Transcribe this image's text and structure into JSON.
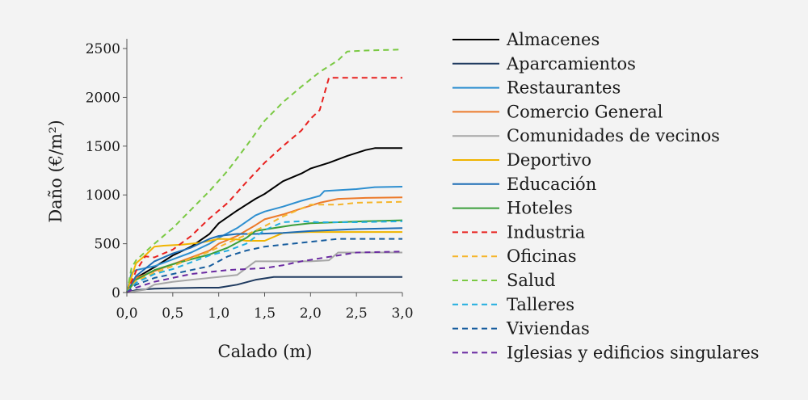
{
  "chart_data": {
    "type": "line",
    "xlabel": "Calado (m)",
    "ylabel": "Daño (€/m²)",
    "xlim": [
      0,
      3
    ],
    "ylim": [
      0,
      2600
    ],
    "xticks": [
      "0,0",
      "0,5",
      "1,0",
      "1,5",
      "2,0",
      "2,5",
      "3,0"
    ],
    "xtick_values": [
      0,
      0.5,
      1,
      1.5,
      2,
      2.5,
      3
    ],
    "yticks": [
      "0",
      "500",
      "1000",
      "1500",
      "2000",
      "2500"
    ],
    "ytick_values": [
      0,
      500,
      1000,
      1500,
      2000,
      2500
    ],
    "grid": false,
    "legend_position": "right",
    "series": [
      {
        "name": "Almacenes",
        "color": "#000000",
        "dash": false,
        "points": [
          [
            0,
            0
          ],
          [
            0.1,
            150
          ],
          [
            0.3,
            260
          ],
          [
            0.5,
            380
          ],
          [
            0.7,
            470
          ],
          [
            0.9,
            600
          ],
          [
            1.0,
            710
          ],
          [
            1.2,
            840
          ],
          [
            1.4,
            960
          ],
          [
            1.5,
            1010
          ],
          [
            1.7,
            1140
          ],
          [
            1.9,
            1220
          ],
          [
            2.0,
            1270
          ],
          [
            2.2,
            1330
          ],
          [
            2.4,
            1400
          ],
          [
            2.6,
            1460
          ],
          [
            2.7,
            1480
          ],
          [
            3.0,
            1480
          ]
        ]
      },
      {
        "name": "Aparcamientos",
        "color": "#1f3a5f",
        "dash": false,
        "points": [
          [
            0,
            0
          ],
          [
            0.1,
            25
          ],
          [
            0.3,
            40
          ],
          [
            0.5,
            45
          ],
          [
            0.8,
            50
          ],
          [
            1.0,
            50
          ],
          [
            1.2,
            80
          ],
          [
            1.4,
            130
          ],
          [
            1.6,
            160
          ],
          [
            2.0,
            160
          ],
          [
            3.0,
            160
          ]
        ]
      },
      {
        "name": "Restaurantes",
        "color": "#2e8fd0",
        "dash": false,
        "points": [
          [
            0,
            0
          ],
          [
            0.05,
            200
          ],
          [
            0.1,
            230
          ],
          [
            0.3,
            270
          ],
          [
            0.5,
            340
          ],
          [
            0.7,
            410
          ],
          [
            0.9,
            500
          ],
          [
            1.0,
            560
          ],
          [
            1.2,
            660
          ],
          [
            1.4,
            790
          ],
          [
            1.5,
            830
          ],
          [
            1.7,
            880
          ],
          [
            1.9,
            940
          ],
          [
            2.1,
            990
          ],
          [
            2.15,
            1040
          ],
          [
            2.5,
            1060
          ],
          [
            2.7,
            1080
          ],
          [
            3.0,
            1085
          ]
        ]
      },
      {
        "name": "Comercio General",
        "color": "#ec7a2a",
        "dash": false,
        "points": [
          [
            0,
            0
          ],
          [
            0.1,
            150
          ],
          [
            0.3,
            220
          ],
          [
            0.5,
            290
          ],
          [
            0.7,
            360
          ],
          [
            0.9,
            430
          ],
          [
            1.0,
            500
          ],
          [
            1.2,
            580
          ],
          [
            1.4,
            690
          ],
          [
            1.5,
            750
          ],
          [
            1.7,
            800
          ],
          [
            1.9,
            860
          ],
          [
            2.1,
            920
          ],
          [
            2.3,
            960
          ],
          [
            2.6,
            970
          ],
          [
            3.0,
            975
          ]
        ]
      },
      {
        "name": "Comunidades de vecinos",
        "color": "#a6a6a6",
        "dash": false,
        "points": [
          [
            0,
            0
          ],
          [
            0.2,
            30
          ],
          [
            0.3,
            80
          ],
          [
            0.5,
            110
          ],
          [
            0.7,
            130
          ],
          [
            0.9,
            150
          ],
          [
            1.0,
            160
          ],
          [
            1.2,
            180
          ],
          [
            1.3,
            250
          ],
          [
            1.4,
            320
          ],
          [
            1.6,
            320
          ],
          [
            1.8,
            320
          ],
          [
            2.0,
            320
          ],
          [
            2.2,
            330
          ],
          [
            2.3,
            410
          ],
          [
            3.0,
            410
          ]
        ]
      },
      {
        "name": "Deportivo",
        "color": "#f0b400",
        "dash": false,
        "points": [
          [
            0,
            0
          ],
          [
            0.05,
            160
          ],
          [
            0.1,
            300
          ],
          [
            0.2,
            380
          ],
          [
            0.3,
            470
          ],
          [
            0.4,
            480
          ],
          [
            0.6,
            490
          ],
          [
            0.8,
            510
          ],
          [
            1.0,
            550
          ],
          [
            1.2,
            545
          ],
          [
            1.3,
            530
          ],
          [
            1.5,
            530
          ],
          [
            1.7,
            610
          ],
          [
            2.0,
            620
          ],
          [
            3.0,
            620
          ]
        ]
      },
      {
        "name": "Educación",
        "color": "#1d6db5",
        "dash": false,
        "points": [
          [
            0,
            0
          ],
          [
            0.1,
            170
          ],
          [
            0.3,
            320
          ],
          [
            0.5,
            400
          ],
          [
            0.7,
            460
          ],
          [
            0.9,
            550
          ],
          [
            1.0,
            580
          ],
          [
            1.2,
            600
          ],
          [
            1.4,
            600
          ],
          [
            1.7,
            610
          ],
          [
            2.0,
            630
          ],
          [
            2.5,
            650
          ],
          [
            3.0,
            660
          ]
        ]
      },
      {
        "name": "Hoteles",
        "color": "#3a9e3a",
        "dash": false,
        "points": [
          [
            0,
            0
          ],
          [
            0.1,
            130
          ],
          [
            0.3,
            230
          ],
          [
            0.5,
            290
          ],
          [
            0.7,
            340
          ],
          [
            0.9,
            390
          ],
          [
            1.1,
            460
          ],
          [
            1.3,
            560
          ],
          [
            1.4,
            630
          ],
          [
            1.6,
            660
          ],
          [
            1.8,
            690
          ],
          [
            2.0,
            710
          ],
          [
            2.3,
            720
          ],
          [
            2.6,
            730
          ],
          [
            3.0,
            740
          ]
        ]
      },
      {
        "name": "Industria",
        "color": "#e8211f",
        "dash": true,
        "points": [
          [
            0,
            0
          ],
          [
            0.1,
            220
          ],
          [
            0.2,
            370
          ],
          [
            0.3,
            360
          ],
          [
            0.5,
            440
          ],
          [
            0.7,
            580
          ],
          [
            0.9,
            760
          ],
          [
            1.1,
            920
          ],
          [
            1.3,
            1130
          ],
          [
            1.5,
            1330
          ],
          [
            1.7,
            1500
          ],
          [
            1.9,
            1660
          ],
          [
            2.0,
            1780
          ],
          [
            2.1,
            1870
          ],
          [
            2.2,
            2200
          ],
          [
            3.0,
            2200
          ]
        ]
      },
      {
        "name": "Oficinas",
        "color": "#f5b52b",
        "dash": true,
        "points": [
          [
            0,
            0
          ],
          [
            0.1,
            120
          ],
          [
            0.3,
            200
          ],
          [
            0.5,
            270
          ],
          [
            0.7,
            350
          ],
          [
            0.9,
            420
          ],
          [
            1.1,
            510
          ],
          [
            1.3,
            590
          ],
          [
            1.5,
            680
          ],
          [
            1.7,
            780
          ],
          [
            1.9,
            860
          ],
          [
            2.0,
            900
          ],
          [
            2.3,
            900
          ],
          [
            2.5,
            920
          ],
          [
            3.0,
            930
          ]
        ]
      },
      {
        "name": "Salud",
        "color": "#7ac943",
        "dash": true,
        "points": [
          [
            0,
            0
          ],
          [
            0.05,
            250
          ],
          [
            0.1,
            330
          ],
          [
            0.3,
            500
          ],
          [
            0.5,
            660
          ],
          [
            0.7,
            850
          ],
          [
            0.9,
            1040
          ],
          [
            1.1,
            1250
          ],
          [
            1.3,
            1500
          ],
          [
            1.5,
            1760
          ],
          [
            1.7,
            1950
          ],
          [
            1.9,
            2110
          ],
          [
            2.1,
            2260
          ],
          [
            2.3,
            2380
          ],
          [
            2.4,
            2470
          ],
          [
            2.6,
            2480
          ],
          [
            3.0,
            2490
          ]
        ]
      },
      {
        "name": "Talleres",
        "color": "#22aee0",
        "dash": true,
        "points": [
          [
            0,
            0
          ],
          [
            0.1,
            100
          ],
          [
            0.3,
            190
          ],
          [
            0.5,
            240
          ],
          [
            0.7,
            310
          ],
          [
            0.9,
            380
          ],
          [
            1.1,
            430
          ],
          [
            1.3,
            500
          ],
          [
            1.5,
            640
          ],
          [
            1.7,
            720
          ],
          [
            1.9,
            730
          ],
          [
            2.1,
            720
          ],
          [
            2.3,
            720
          ],
          [
            2.5,
            720
          ],
          [
            3.0,
            730
          ]
        ]
      },
      {
        "name": "Viviendas",
        "color": "#175d9e",
        "dash": true,
        "points": [
          [
            0,
            0
          ],
          [
            0.1,
            80
          ],
          [
            0.3,
            150
          ],
          [
            0.5,
            190
          ],
          [
            0.7,
            230
          ],
          [
            0.9,
            270
          ],
          [
            1.1,
            370
          ],
          [
            1.3,
            430
          ],
          [
            1.5,
            470
          ],
          [
            1.7,
            490
          ],
          [
            1.9,
            510
          ],
          [
            2.1,
            530
          ],
          [
            2.3,
            550
          ],
          [
            2.5,
            550
          ],
          [
            3.0,
            550
          ]
        ]
      },
      {
        "name": "Iglesias y edificios singulares",
        "color": "#6a2aa1",
        "dash": true,
        "points": [
          [
            0,
            0
          ],
          [
            0.1,
            50
          ],
          [
            0.3,
            110
          ],
          [
            0.5,
            150
          ],
          [
            0.7,
            190
          ],
          [
            0.9,
            210
          ],
          [
            1.1,
            230
          ],
          [
            1.3,
            240
          ],
          [
            1.5,
            250
          ],
          [
            1.7,
            280
          ],
          [
            1.9,
            320
          ],
          [
            2.1,
            350
          ],
          [
            2.3,
            380
          ],
          [
            2.5,
            410
          ],
          [
            3.0,
            420
          ]
        ]
      }
    ]
  }
}
